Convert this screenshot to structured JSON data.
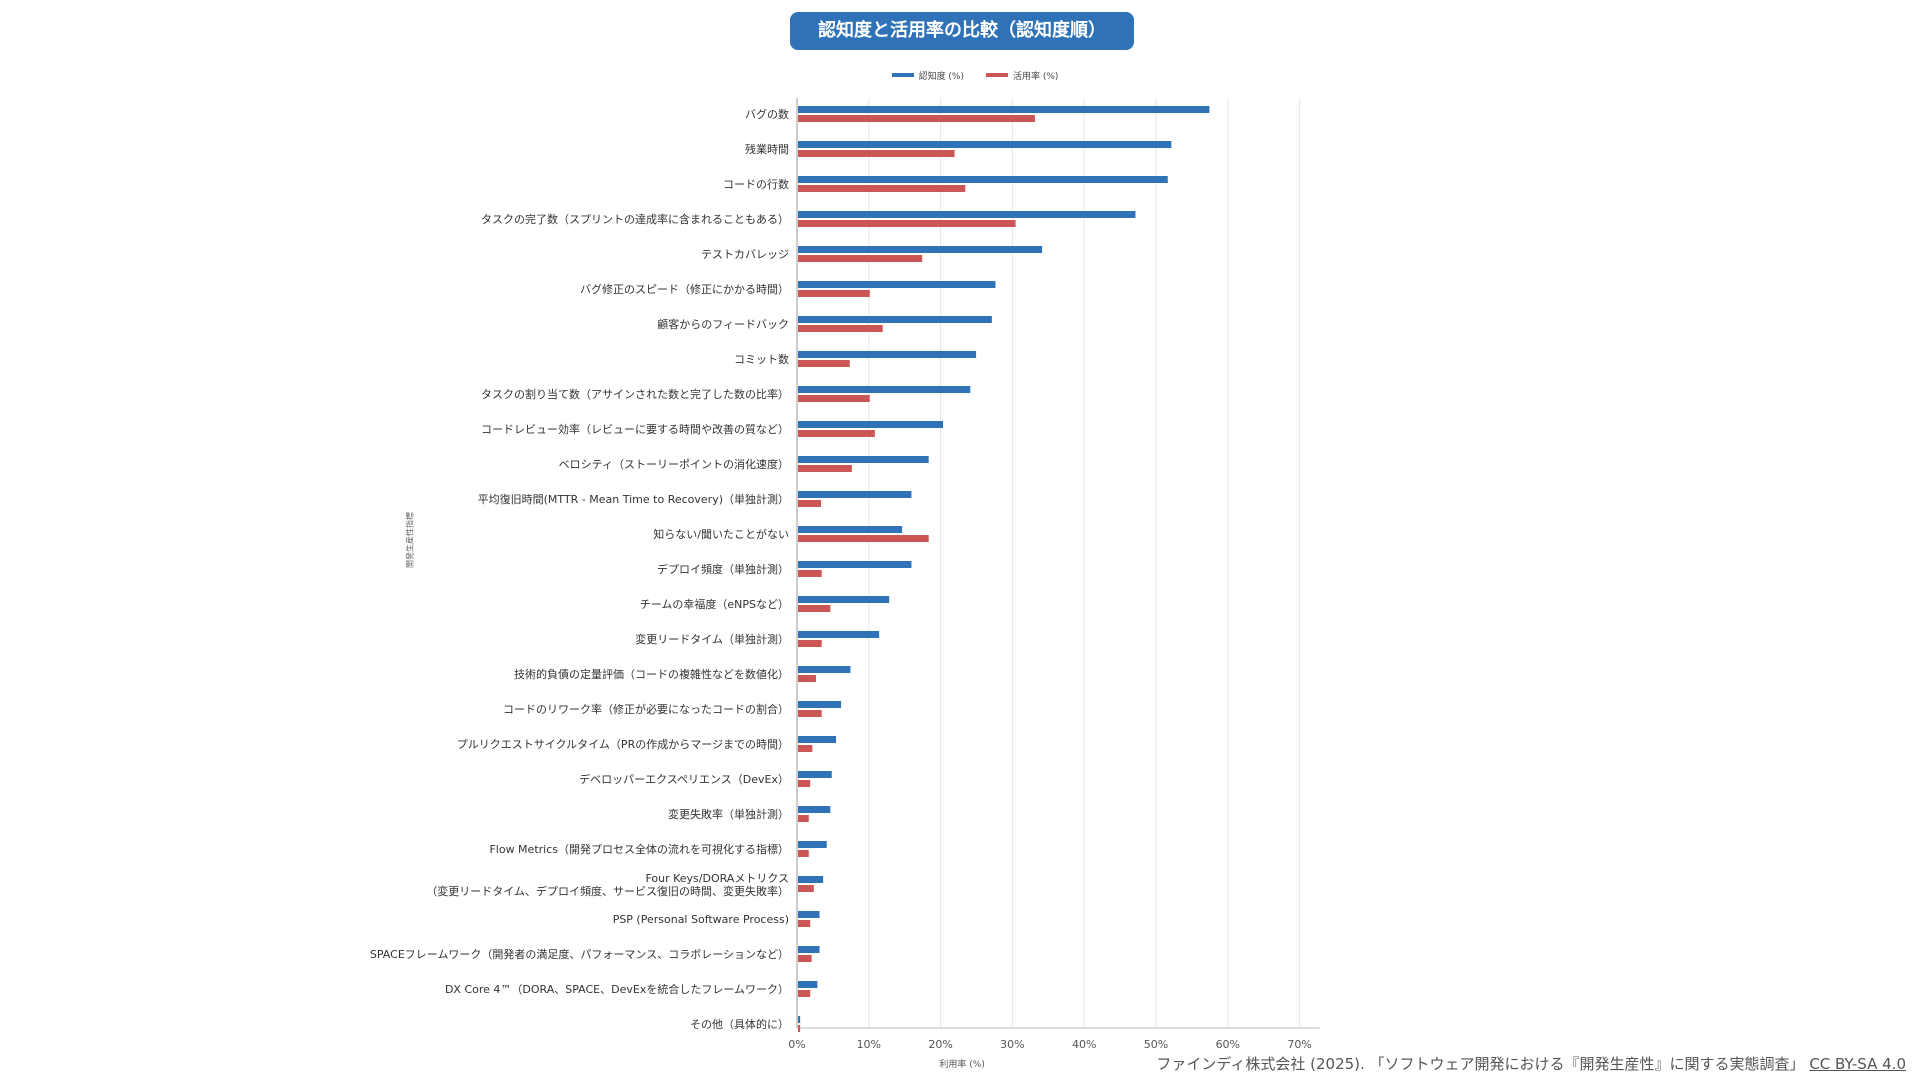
{
  "chart_data": {
    "type": "bar",
    "orientation": "horizontal",
    "title": "認知度と活用率の比較（認知度順）",
    "xlabel": "利用率 (%)",
    "ylabel": "開発生産性指標",
    "xlim": [
      0,
      70
    ],
    "xticks": [
      "0%",
      "10%",
      "20%",
      "30%",
      "40%",
      "50%",
      "60%",
      "70%"
    ],
    "legend_position": "top-center",
    "grid": "vertical",
    "categories": [
      [
        "バグの数"
      ],
      [
        "残業時間"
      ],
      [
        "コードの行数"
      ],
      [
        "タスクの完了数（スプリントの達成率に含まれることもある）"
      ],
      [
        "テストカバレッジ"
      ],
      [
        "バグ修正のスピード（修正にかかる時間）"
      ],
      [
        "顧客からのフィードバック"
      ],
      [
        "コミット数"
      ],
      [
        "タスクの割り当て数（アサインされた数と完了した数の比率）"
      ],
      [
        "コードレビュー効率（レビューに要する時間や改善の質など）"
      ],
      [
        "ベロシティ（ストーリーポイントの消化速度）"
      ],
      [
        "平均復旧時間(MTTR - Mean Time to Recovery)（単独計測）"
      ],
      [
        "知らない/聞いたことがない"
      ],
      [
        "デプロイ頻度（単独計測）"
      ],
      [
        "チームの幸福度（eNPSなど）"
      ],
      [
        "変更リードタイム（単独計測）"
      ],
      [
        "技術的負債の定量評価（コードの複雑性などを数値化）"
      ],
      [
        "コードのリワーク率（修正が必要になったコードの割合）"
      ],
      [
        "プルリクエストサイクルタイム（PRの作成からマージまでの時間）"
      ],
      [
        "デベロッパーエクスペリエンス（DevEx）"
      ],
      [
        "変更失敗率（単独計測）"
      ],
      [
        "Flow Metrics（開発プロセス全体の流れを可視化する指標）"
      ],
      [
        "Four Keys/DORAメトリクス",
        "（変更リードタイム、デプロイ頻度、サービス復旧の時間、変更失敗率）"
      ],
      [
        "PSP (Personal Software Process)"
      ],
      [
        "SPACEフレームワーク（開発者の満足度、パフォーマンス、コラボレーションなど）"
      ],
      [
        "DX Core 4™（DORA、SPACE、DevExを統合したフレームワーク）"
      ],
      [
        "その他（具体的に）"
      ]
    ],
    "series": [
      {
        "name": "認知度 (%)",
        "color": "#2f72b8",
        "values": [
          57.3,
          52,
          51.5,
          47,
          34,
          27.5,
          27,
          24.8,
          24,
          20.2,
          18.2,
          15.8,
          14.5,
          15.8,
          12.7,
          11.3,
          7.3,
          6,
          5.3,
          4.7,
          4.5,
          4,
          3.5,
          3,
          3,
          2.7,
          0.3
        ]
      },
      {
        "name": "活用率 (%)",
        "color": "#cc5555",
        "values": [
          33,
          21.8,
          23.3,
          30.3,
          17.3,
          10,
          11.8,
          7.2,
          10,
          10.7,
          7.5,
          3.2,
          18.2,
          3.3,
          4.5,
          3.3,
          2.5,
          3.3,
          2,
          1.7,
          1.5,
          1.5,
          2.2,
          1.7,
          1.9,
          1.7,
          0.3
        ]
      }
    ]
  },
  "source": {
    "text": "ファインディ株式会社 (2025). 「ソフトウェア開発における『開発生産性』に関する実態調査」",
    "license": "CC BY-SA 4.0"
  }
}
